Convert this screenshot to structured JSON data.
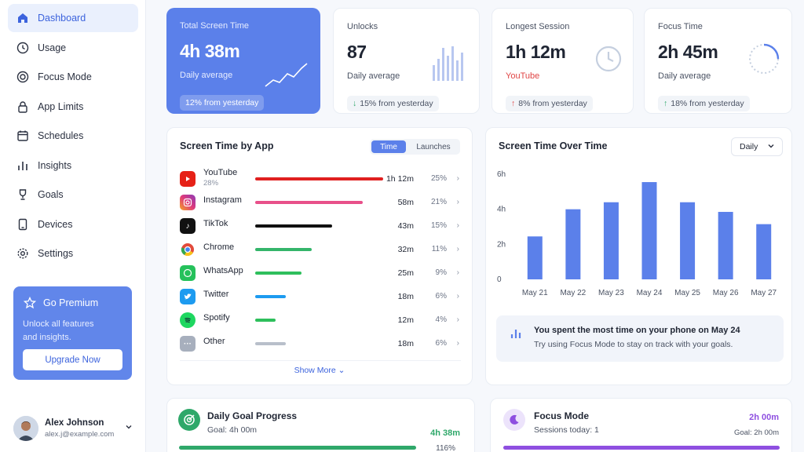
{
  "sidebar": {
    "items": [
      {
        "label": "Dashboard",
        "icon": "home-icon",
        "active": true
      },
      {
        "label": "Usage",
        "icon": "clock-icon"
      },
      {
        "label": "Focus Mode",
        "icon": "target-icon"
      },
      {
        "label": "App Limits",
        "icon": "lock-icon"
      },
      {
        "label": "Schedules",
        "icon": "calendar-icon"
      },
      {
        "label": "Insights",
        "icon": "bar-chart-icon"
      },
      {
        "label": "Goals",
        "icon": "trophy-icon"
      },
      {
        "label": "Devices",
        "icon": "tablet-icon"
      },
      {
        "label": "Settings",
        "icon": "gear-icon"
      }
    ],
    "premium": {
      "title": "Go Premium",
      "subtitle": "Unlock all features and insights.",
      "button": "Upgrade Now"
    },
    "user": {
      "name": "Alex Johnson",
      "email": "alex.j@example.com"
    }
  },
  "stats": {
    "total": {
      "label": "Total Screen Time",
      "value": "4h 38m",
      "sub": "Daily average",
      "delta": "12% from yesterday"
    },
    "unlocks": {
      "label": "Unlocks",
      "value": "87",
      "sub": "Daily average",
      "delta_arrow": "↓",
      "delta": "15% from yesterday"
    },
    "longest": {
      "label": "Longest Session",
      "value": "1h 12m",
      "sub": "YouTube",
      "delta_arrow": "↑",
      "delta": "8% from yesterday"
    },
    "focus": {
      "label": "Focus Time",
      "value": "2h 45m",
      "sub": "Daily average",
      "delta_arrow": "↑",
      "delta": "18% from yesterday"
    }
  },
  "apps_panel": {
    "title": "Screen Time by App",
    "toggle": [
      "Time",
      "Launches"
    ],
    "show_more": "Show More",
    "apps": [
      {
        "name": "YouTube",
        "sub": "28%",
        "time": "1h 12m",
        "pct": "25%",
        "share": 0.25,
        "color": "#e02020"
      },
      {
        "name": "Instagram",
        "time": "58m",
        "pct": "21%",
        "share": 0.21,
        "color": "#e8508a"
      },
      {
        "name": "TikTok",
        "time": "43m",
        "pct": "15%",
        "share": 0.15,
        "color": "#111111"
      },
      {
        "name": "Chrome",
        "time": "32m",
        "pct": "11%",
        "share": 0.11,
        "color": "#34b56a"
      },
      {
        "name": "WhatsApp",
        "time": "25m",
        "pct": "9%",
        "share": 0.09,
        "color": "#2ebf5c"
      },
      {
        "name": "Twitter",
        "time": "18m",
        "pct": "6%",
        "share": 0.06,
        "color": "#1d9bf0"
      },
      {
        "name": "Spotify",
        "time": "12m",
        "pct": "4%",
        "share": 0.04,
        "color": "#2ebf5c"
      },
      {
        "name": "Other",
        "time": "18m",
        "pct": "6%",
        "share": 0.06,
        "color": "#b8bfca"
      }
    ]
  },
  "chart_panel": {
    "title": "Screen Time Over Time",
    "dropdown": "Daily",
    "insight_title": "You spent the most time on your phone on May 24",
    "insight_sub": "Try using Focus Mode to stay on track with your goals."
  },
  "chart_data": {
    "type": "bar",
    "categories": [
      "May 21",
      "May 22",
      "May 23",
      "May 24",
      "May 25",
      "May 26",
      "May 27"
    ],
    "values": [
      2.45,
      4.0,
      4.4,
      5.55,
      4.4,
      3.85,
      3.15
    ],
    "unit": "hours",
    "ylim": [
      0,
      6
    ],
    "yticks": [
      "0",
      "2h",
      "4h",
      "6h"
    ],
    "color": "#5b80ea",
    "grid": false
  },
  "goal": {
    "title": "Daily Goal Progress",
    "sub": "Goal: 4h 00m",
    "value": "4h 38m",
    "pct": "116%",
    "progress": 1.0
  },
  "focus_mode": {
    "title": "Focus Mode",
    "sub": "Sessions today: 1",
    "value": "2h 00m",
    "goal": "Goal: 2h 00m",
    "progress": 1.0
  }
}
